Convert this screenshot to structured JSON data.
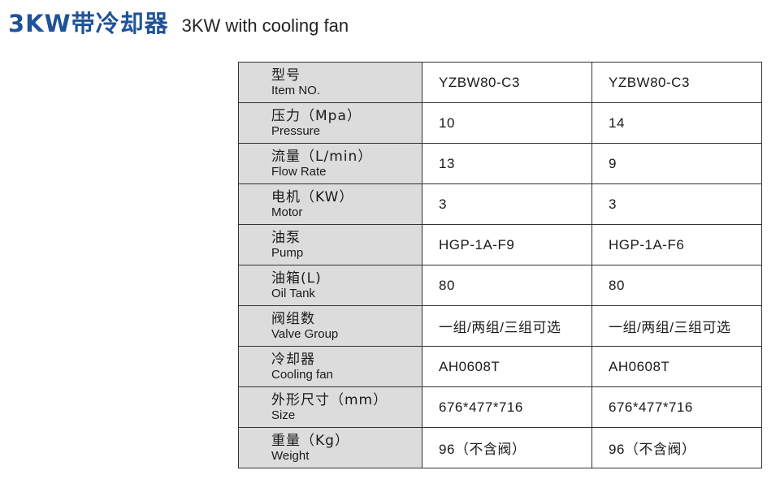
{
  "title": {
    "cn": "3KW带冷却器",
    "en": "3KW with cooling fan"
  },
  "accent_color": "#1f5298",
  "rows": [
    {
      "cn": "型号",
      "en": "Item NO.",
      "values": [
        "YZBW80-C3",
        "YZBW80-C3"
      ]
    },
    {
      "cn": "压力（Mpa）",
      "en": "Pressure",
      "values": [
        "10",
        "14"
      ]
    },
    {
      "cn": "流量（L/min）",
      "en": "Flow Rate",
      "values": [
        "13",
        "9"
      ]
    },
    {
      "cn": "电机（KW）",
      "en": "Motor",
      "values": [
        "3",
        "3"
      ]
    },
    {
      "cn": "油泵",
      "en": "Pump",
      "values": [
        "HGP-1A-F9",
        "HGP-1A-F6"
      ]
    },
    {
      "cn": "油箱(L)",
      "en": "Oil Tank",
      "values": [
        "80",
        "80"
      ]
    },
    {
      "cn": "阀组数",
      "en": "Valve Group",
      "values": [
        "一组/两组/三组可选",
        "一组/两组/三组可选"
      ]
    },
    {
      "cn": "冷却器",
      "en": "Cooling fan",
      "values": [
        "AH0608T",
        "AH0608T"
      ]
    },
    {
      "cn": "外形尺寸（mm）",
      "en": "Size",
      "values": [
        "676*477*716",
        "676*477*716"
      ]
    },
    {
      "cn": "重量（Kg）",
      "en": "Weight",
      "values": [
        "96（不含阀）",
        "96（不含阀）"
      ]
    }
  ]
}
